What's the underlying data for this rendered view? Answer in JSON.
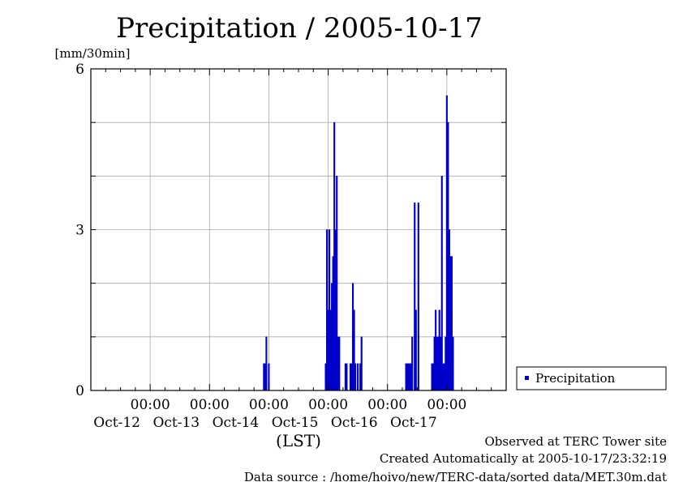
{
  "chart_data": {
    "type": "bar",
    "title": "Precipitation / 2005-10-17",
    "unit_label": "[mm/30min]",
    "xlabel": "(LST)",
    "ylim": [
      0,
      6
    ],
    "y_ticks": [
      "0",
      "3",
      "6"
    ],
    "x_range": [
      "2005-10-11 00:00",
      "2005-10-18 00:00"
    ],
    "x_time_labels": [
      "00:00",
      "00:00",
      "00:00",
      "00:00",
      "00:00",
      "00:00"
    ],
    "x_date_labels": [
      "Oct-12",
      "Oct-13",
      "Oct-14",
      "Oct-15",
      "Oct-16",
      "Oct-17"
    ],
    "x_tick_times": [
      "2005-10-12 00:00",
      "2005-10-13 00:00",
      "2005-10-14 00:00",
      "2005-10-15 00:00",
      "2005-10-16 00:00",
      "2005-10-17 00:00"
    ],
    "grid": true,
    "legend_position": "right-bottom",
    "series": [
      {
        "name": "Precipitation",
        "color": "#0000cc",
        "points": [
          [
            "2005-10-13 22:00",
            0.5
          ],
          [
            "2005-10-13 22:30",
            0.5
          ],
          [
            "2005-10-13 23:00",
            1.0
          ],
          [
            "2005-10-14 00:00",
            0.5
          ],
          [
            "2005-10-14 23:00",
            0.5
          ],
          [
            "2005-10-14 23:30",
            3.0
          ],
          [
            "2005-10-15 00:00",
            1.5
          ],
          [
            "2005-10-15 00:30",
            3.0
          ],
          [
            "2005-10-15 01:00",
            1.5
          ],
          [
            "2005-10-15 01:30",
            2.0
          ],
          [
            "2005-10-15 02:00",
            2.5
          ],
          [
            "2005-10-15 02:30",
            5.0
          ],
          [
            "2005-10-15 03:00",
            3.0
          ],
          [
            "2005-10-15 03:30",
            4.0
          ],
          [
            "2005-10-15 04:00",
            1.0
          ],
          [
            "2005-10-15 04:30",
            1.0
          ],
          [
            "2005-10-15 07:00",
            0.5
          ],
          [
            "2005-10-15 07:30",
            0.5
          ],
          [
            "2005-10-15 09:00",
            0.5
          ],
          [
            "2005-10-15 09:30",
            0.5
          ],
          [
            "2005-10-15 10:00",
            2.0
          ],
          [
            "2005-10-15 10:30",
            1.5
          ],
          [
            "2005-10-15 11:00",
            0.5
          ],
          [
            "2005-10-15 12:00",
            0.5
          ],
          [
            "2005-10-15 13:00",
            0.5
          ],
          [
            "2005-10-15 13:30",
            1.0
          ],
          [
            "2005-10-16 07:30",
            0.5
          ],
          [
            "2005-10-16 08:00",
            0.5
          ],
          [
            "2005-10-16 08:30",
            0.5
          ],
          [
            "2005-10-16 09:00",
            0.5
          ],
          [
            "2005-10-16 09:30",
            0.5
          ],
          [
            "2005-10-16 10:00",
            1.0
          ],
          [
            "2005-10-16 11:00",
            3.5
          ],
          [
            "2005-10-16 11:30",
            1.5
          ],
          [
            "2005-10-16 12:30",
            3.5
          ],
          [
            "2005-10-16 18:00",
            0.5
          ],
          [
            "2005-10-16 18:30",
            0.5
          ],
          [
            "2005-10-16 19:00",
            1.0
          ],
          [
            "2005-10-16 19:30",
            1.5
          ],
          [
            "2005-10-16 20:00",
            1.0
          ],
          [
            "2005-10-16 20:30",
            1.0
          ],
          [
            "2005-10-16 21:00",
            1.5
          ],
          [
            "2005-10-16 21:30",
            1.0
          ],
          [
            "2005-10-16 22:00",
            4.0
          ],
          [
            "2005-10-16 22:30",
            0.5
          ],
          [
            "2005-10-16 23:00",
            0.5
          ],
          [
            "2005-10-16 23:30",
            1.0
          ],
          [
            "2005-10-17 00:00",
            5.5
          ],
          [
            "2005-10-17 00:30",
            5.0
          ],
          [
            "2005-10-17 01:00",
            3.0
          ],
          [
            "2005-10-17 01:30",
            2.5
          ],
          [
            "2005-10-17 02:00",
            2.5
          ],
          [
            "2005-10-17 02:30",
            1.0
          ]
        ]
      }
    ]
  },
  "legend": {
    "label": "Precipitation"
  },
  "footer": {
    "line1": "Observed at TERC Tower site",
    "line2": "Created Automatically at 2005-10-17/23:32:19",
    "line3": "Data source : /home/hoivo/new/TERC-data/sorted  data/MET.30m.dat"
  }
}
